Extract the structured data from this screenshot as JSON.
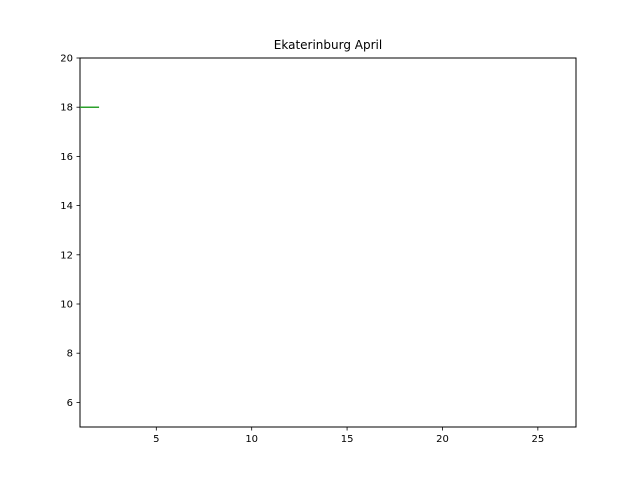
{
  "chart_data": {
    "type": "line",
    "title": "Ekaterinburg April",
    "xlabel": "",
    "ylabel": "",
    "xlim": [
      1,
      27
    ],
    "ylim": [
      5,
      20
    ],
    "x_ticks": [
      5,
      10,
      15,
      20,
      25
    ],
    "y_ticks": [
      6,
      8,
      10,
      12,
      14,
      16,
      18,
      20
    ],
    "grid": false,
    "series": [
      {
        "color": "#2ca02c",
        "x": [
          1,
          2
        ],
        "y": [
          18,
          18
        ]
      }
    ]
  }
}
